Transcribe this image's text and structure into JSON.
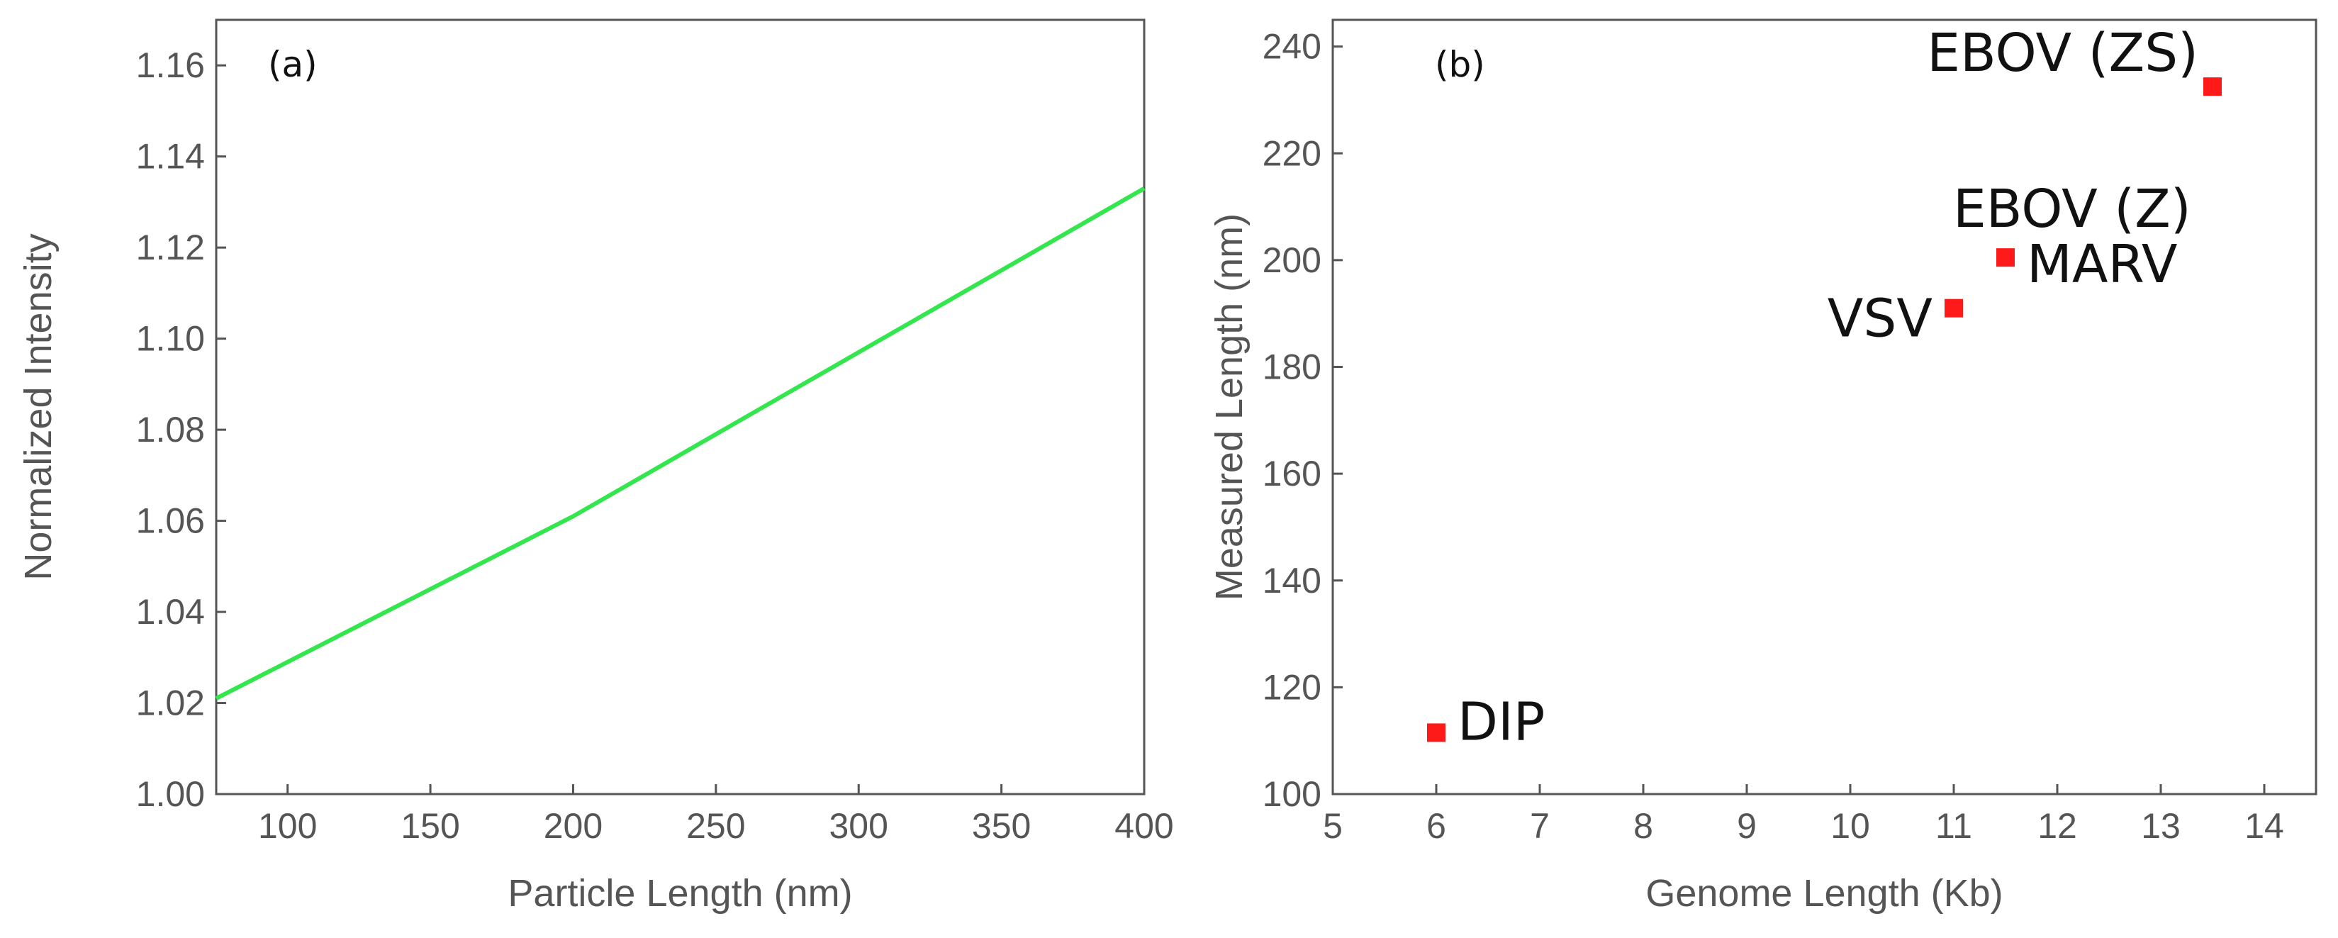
{
  "chart_data": [
    {
      "type": "line",
      "panel_label": "(a)",
      "xlabel": "Particle Length (nm)",
      "ylabel": "Normalized Intensity",
      "xlim": [
        75,
        400
      ],
      "ylim": [
        1.0,
        1.17
      ],
      "xticks": [
        100,
        150,
        200,
        250,
        300,
        350,
        400
      ],
      "xtick_labels": [
        "100",
        "150",
        "200",
        "250",
        "300",
        "350",
        "400"
      ],
      "yticks": [
        1.0,
        1.02,
        1.04,
        1.06,
        1.08,
        1.1,
        1.12,
        1.14,
        1.16
      ],
      "ytick_labels": [
        "1.00",
        "1.02",
        "1.04",
        "1.06",
        "1.08",
        "1.10",
        "1.12",
        "1.14",
        "1.16"
      ],
      "series": [
        {
          "name": "Normalized Intensity",
          "color": "#33e64d",
          "x": [
            75,
            100,
            125,
            150,
            175,
            200,
            225,
            250,
            275,
            300,
            325,
            350,
            375,
            400
          ],
          "y": [
            1.021,
            1.029,
            1.037,
            1.045,
            1.053,
            1.061,
            1.07,
            1.079,
            1.088,
            1.097,
            1.106,
            1.115,
            1.124,
            1.133
          ]
        }
      ],
      "grid": false
    },
    {
      "type": "scatter",
      "panel_label": "(b)",
      "xlabel": "Genome Length (Kb)",
      "ylabel": "Measured Length (nm)",
      "xlim": [
        5,
        14.5
      ],
      "ylim": [
        100,
        245
      ],
      "xticks": [
        5,
        6,
        7,
        8,
        9,
        10,
        11,
        12,
        13,
        14
      ],
      "xtick_labels": [
        "5",
        "6",
        "7",
        "8",
        "9",
        "10",
        "11",
        "12",
        "13",
        "14"
      ],
      "yticks": [
        100,
        120,
        140,
        160,
        180,
        200,
        220,
        240
      ],
      "ytick_labels": [
        "100",
        "120",
        "140",
        "160",
        "180",
        "200",
        "220",
        "240"
      ],
      "marker_color": "#ff1a1a",
      "points": [
        {
          "label": "DIP",
          "x": 6.0,
          "y": 111.5,
          "label_pos": "right"
        },
        {
          "label": "VSV",
          "x": 11.0,
          "y": 191.0,
          "label_pos": "left"
        },
        {
          "label": "MARV",
          "x": 11.5,
          "y": 200.5,
          "label_pos": "right"
        },
        {
          "label": "EBOV (Z)",
          "x": 11.5,
          "y": 200.5,
          "label_pos": "upper-right"
        },
        {
          "label": "EBOV (ZS)",
          "x": 13.5,
          "y": 232.5,
          "label_pos": "upper-left"
        }
      ],
      "grid": false
    }
  ]
}
